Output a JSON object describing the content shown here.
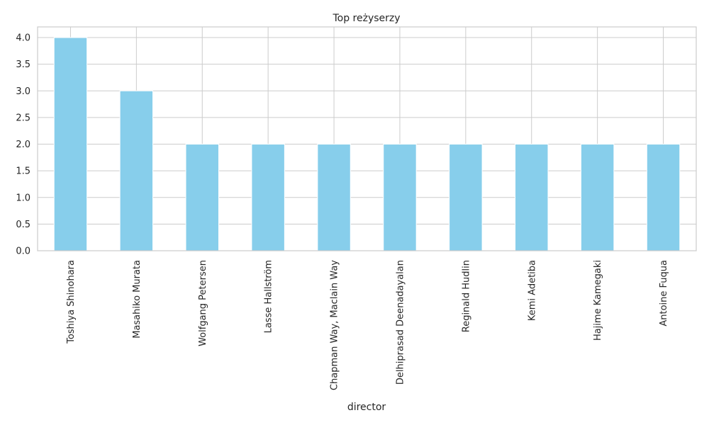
{
  "chart_data": {
    "type": "bar",
    "title": "Top reżyserzy",
    "xlabel": "director",
    "ylabel": "",
    "categories": [
      "Toshiya Shinohara",
      "Masahiko Murata",
      "Wolfgang Petersen",
      "Lasse Hallström",
      "Chapman Way, Maclain Way",
      "Delhiprasad Deenadayalan",
      "Reginald Hudlin",
      "Kemi Adetiba",
      "Hajime Kamegaki",
      "Antoine Fuqua"
    ],
    "values": [
      4,
      3,
      2,
      2,
      2,
      2,
      2,
      2,
      2,
      2
    ],
    "ylim": [
      0,
      4.2
    ],
    "yticks": [
      "0.0",
      "0.5",
      "1.0",
      "1.5",
      "2.0",
      "2.5",
      "3.0",
      "3.5",
      "4.0"
    ],
    "grid": true,
    "bar_color": "#87CEEB",
    "grid_color": "#cccccc"
  }
}
